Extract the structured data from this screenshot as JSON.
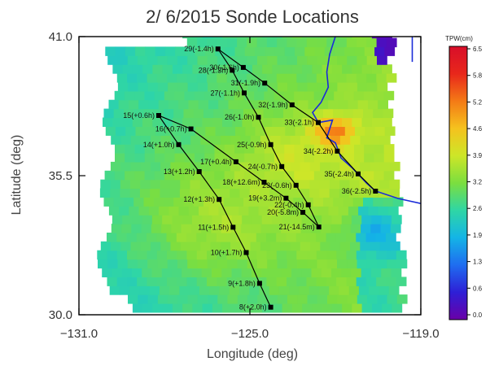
{
  "chart_data": {
    "type": "scatter",
    "title": "2/ 6/2015 Sonde Locations",
    "xlabel": "Longitude (deg)",
    "ylabel": "Latitude (deg)",
    "xlim": [
      -131.0,
      -119.0
    ],
    "ylim": [
      30.0,
      41.0
    ],
    "x_ticks": [
      -131.0,
      -125.0,
      -119.0
    ],
    "x_tick_labels": [
      "−131.0",
      "−125.0",
      "−119.0"
    ],
    "y_ticks": [
      30.0,
      35.5,
      41.0
    ],
    "y_tick_labels": [
      "30.0",
      "35.5",
      "41.0"
    ],
    "colorbar": {
      "label": "TPW(cm)",
      "ticks": [
        "6.5",
        "5.8",
        "5.2",
        "4.6",
        "3.9",
        "3.2",
        "2.6",
        "1.9",
        "1.3",
        "0.6",
        "0.0"
      ],
      "range": [
        0.0,
        6.5
      ],
      "colors": [
        "#6a00a8",
        "#2e1fd6",
        "#1f6df0",
        "#14b4e6",
        "#2fd6a5",
        "#7bde3f",
        "#cde628",
        "#f5c21e",
        "#f47a16",
        "#e8271b",
        "#d80e2a"
      ]
    },
    "background": "TPW field, approx. 2.6-4.1 cm over most of the domain; higher values (4.6-6.0 cm) near the coast around 36-38N, -122 to -120",
    "sondes": [
      {
        "label": "8(+2.0h)",
        "x": -124.27,
        "y": 30.3
      },
      {
        "label": "9(+1.8h)",
        "x": -124.66,
        "y": 31.24
      },
      {
        "label": "10(+1.7h)",
        "x": -125.13,
        "y": 32.46
      },
      {
        "label": "11(+1.5h)",
        "x": -125.59,
        "y": 33.46
      },
      {
        "label": "12(+1.3h)",
        "x": -126.08,
        "y": 34.56
      },
      {
        "label": "13(+1.2h)",
        "x": -126.78,
        "y": 35.66
      },
      {
        "label": "14(+1.0h)",
        "x": -127.5,
        "y": 36.73
      },
      {
        "label": "15(+0.6h)",
        "x": -128.2,
        "y": 37.88
      },
      {
        "label": "16(+0.7h)",
        "x": -127.07,
        "y": 37.35
      },
      {
        "label": "17(+0.4h)",
        "x": -125.49,
        "y": 36.05
      },
      {
        "label": "18(+12.6m)",
        "x": -124.5,
        "y": 35.24
      },
      {
        "label": "19(+3.2m)",
        "x": -123.73,
        "y": 34.61
      },
      {
        "label": "20(-5.8m)",
        "x": -123.14,
        "y": 34.05
      },
      {
        "label": "21(-14.5m)",
        "x": -122.58,
        "y": 33.47
      },
      {
        "label": "22(-0.4h)",
        "x": -122.95,
        "y": 34.35
      },
      {
        "label": "23(-0.6h)",
        "x": -123.38,
        "y": 35.12
      },
      {
        "label": "24(-0.7h)",
        "x": -123.88,
        "y": 35.86
      },
      {
        "label": "25(-0.9h)",
        "x": -124.27,
        "y": 36.73
      },
      {
        "label": "26(-1.0h)",
        "x": -124.7,
        "y": 37.81
      },
      {
        "label": "27(-1.1h)",
        "x": -125.2,
        "y": 38.77
      },
      {
        "label": "28(-1.3h)",
        "x": -125.62,
        "y": 39.67
      },
      {
        "label": "29(-1.4h)",
        "x": -126.12,
        "y": 40.51
      },
      {
        "label": "30(-1.6h)",
        "x": -125.23,
        "y": 39.78
      },
      {
        "label": "31(-1.9h)",
        "x": -124.48,
        "y": 39.16
      },
      {
        "label": "32(-1.9h)",
        "x": -123.52,
        "y": 38.3
      },
      {
        "label": "33(-2.1h)",
        "x": -122.6,
        "y": 37.6
      },
      {
        "label": "34(-2.2h)",
        "x": -121.93,
        "y": 36.47
      },
      {
        "label": "35(-2.4h)",
        "x": -121.2,
        "y": 35.57
      },
      {
        "label": "36(-2.5h)",
        "x": -120.59,
        "y": 34.89
      }
    ],
    "flight_track": [
      "8(+2.0h)",
      "9(+1.8h)",
      "10(+1.7h)",
      "11(+1.5h)",
      "12(+1.3h)",
      "13(+1.2h)",
      "14(+1.0h)",
      "15(+0.6h)",
      "16(+0.7h)",
      "17(+0.4h)",
      "18(+12.6m)",
      "19(+3.2m)",
      "20(-5.8m)",
      "21(-14.5m)",
      "22(-0.4h)",
      "23(-0.6h)",
      "24(-0.7h)",
      "25(-0.9h)",
      "26(-1.0h)",
      "27(-1.1h)",
      "28(-1.3h)",
      "29(-1.4h)",
      "30(-1.6h)",
      "31(-1.9h)",
      "32(-1.9h)",
      "33(-2.1h)",
      "34(-2.2h)",
      "35(-2.4h)",
      "36(-2.5h)"
    ],
    "grid": false
  }
}
